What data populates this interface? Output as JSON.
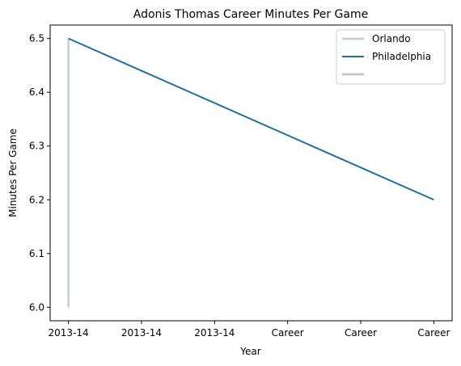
{
  "chart_data": {
    "type": "line",
    "title": "Adonis Thomas Career Minutes Per Game",
    "xlabel": "Year",
    "ylabel": "Minutes Per Game",
    "x_tick_labels": [
      "2013-14",
      "2013-14",
      "2013-14",
      "Career",
      "Career",
      "Career"
    ],
    "xlim": [
      -0.25,
      5.25
    ],
    "ylim": [
      5.975,
      6.525
    ],
    "y_ticks": [
      6.0,
      6.1,
      6.2,
      6.3,
      6.4,
      6.5
    ],
    "y_tick_labels": [
      "6.0",
      "6.1",
      "6.2",
      "6.3",
      "6.4",
      "6.5"
    ],
    "grid": false,
    "legend_position": "top-right",
    "series": [
      {
        "name": "Orlando",
        "color": "#c0ccd8",
        "x": [
          0,
          0
        ],
        "y": [
          6.0,
          6.5
        ]
      },
      {
        "name": "Philadelphia",
        "color": "#1a6fb0",
        "x": [
          0,
          5
        ],
        "y": [
          6.5,
          6.2
        ]
      },
      {
        "name": "",
        "color": "#c0c0c0",
        "x": [],
        "y": []
      }
    ]
  }
}
